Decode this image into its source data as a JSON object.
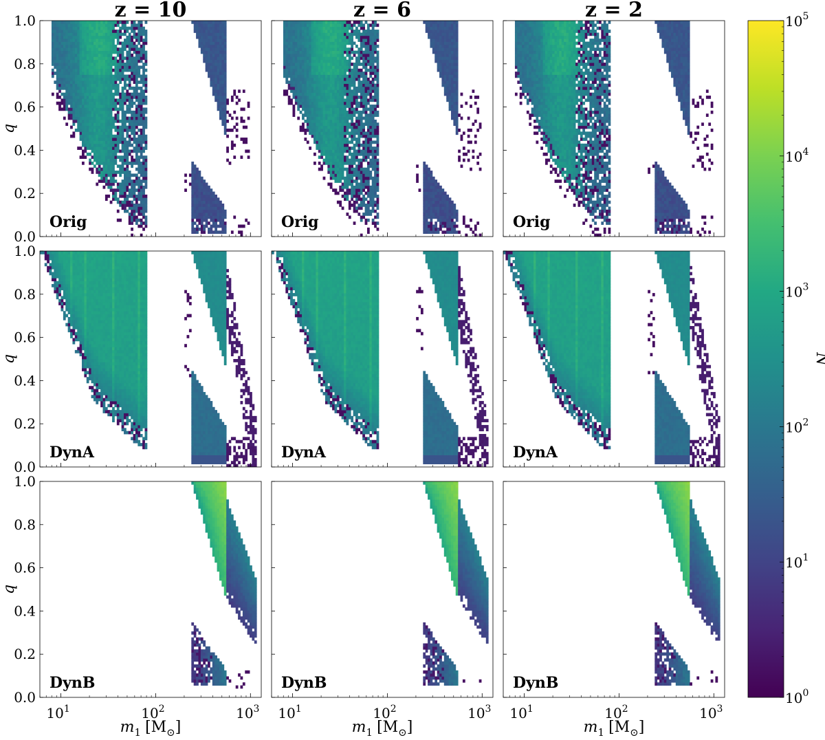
{
  "chart_data": {
    "type": "heatmap",
    "layout": "3x3 grid of 2D histograms with shared colorbar",
    "columns": [
      "z = 10",
      "z = 6",
      "z = 2"
    ],
    "rows": [
      "Orig",
      "DynA",
      "DynB"
    ],
    "x_axis": {
      "label": "m_1 [M_⊙]",
      "label_main": "m",
      "label_sub": "1",
      "label_unit": "[M",
      "label_unit_sub": "⊙",
      "label_close": "]",
      "scale": "log",
      "range": [
        6,
        1300
      ],
      "ticks": [
        10,
        100,
        1000
      ],
      "tick_labels": [
        {
          "base": "10",
          "exp": "1"
        },
        {
          "base": "10",
          "exp": "2"
        },
        {
          "base": "10",
          "exp": "3"
        }
      ]
    },
    "y_axis": {
      "label": "q",
      "scale": "linear",
      "range": [
        0,
        1
      ],
      "ticks": [
        "0.0",
        "0.2",
        "0.4",
        "0.6",
        "0.8",
        "1.0"
      ]
    },
    "colorbar": {
      "label": "N",
      "scale": "log",
      "range": [
        1,
        100000
      ],
      "colormap": "viridis",
      "tick_labels": [
        {
          "base": "10",
          "exp": "0"
        },
        {
          "base": "10",
          "exp": "1"
        },
        {
          "base": "10",
          "exp": "2"
        },
        {
          "base": "10",
          "exp": "3"
        },
        {
          "base": "10",
          "exp": "4"
        },
        {
          "base": "10",
          "exp": "5"
        }
      ]
    },
    "populations": {
      "Orig": {
        "mass_gap_empty_range_msun": [
          80,
          240
        ],
        "low_mass_region": "m1 ~ 8-80, q ~ 0.05-1.0, counts ~ 1e1-1e2.5",
        "high_mass_region": "m1 ~ 240-560, q ~ 0.45-1.0 (upper branch) and q ~ 0.02-0.35 (lower branch), counts ~ 1e1-1e2"
      },
      "DynA": {
        "mass_gap_empty_range_msun": [
          80,
          240
        ],
        "low_mass_region": "m1 ~ 6-80, q ~ 0.08-1.0, counts ~ 1e1-1e2.7",
        "high_mass_region": "m1 ~ 240-560, counts ~ 1e2-1e2.5"
      },
      "DynB": {
        "low_mass_region": "empty",
        "high_mass_region": "m1 ~ 240-1100, q ~ 0.05-1.0, peak counts ~ 1e4 near m1 ~ 500, q ~ 1"
      }
    },
    "panels_identical_across_redshift": true
  }
}
